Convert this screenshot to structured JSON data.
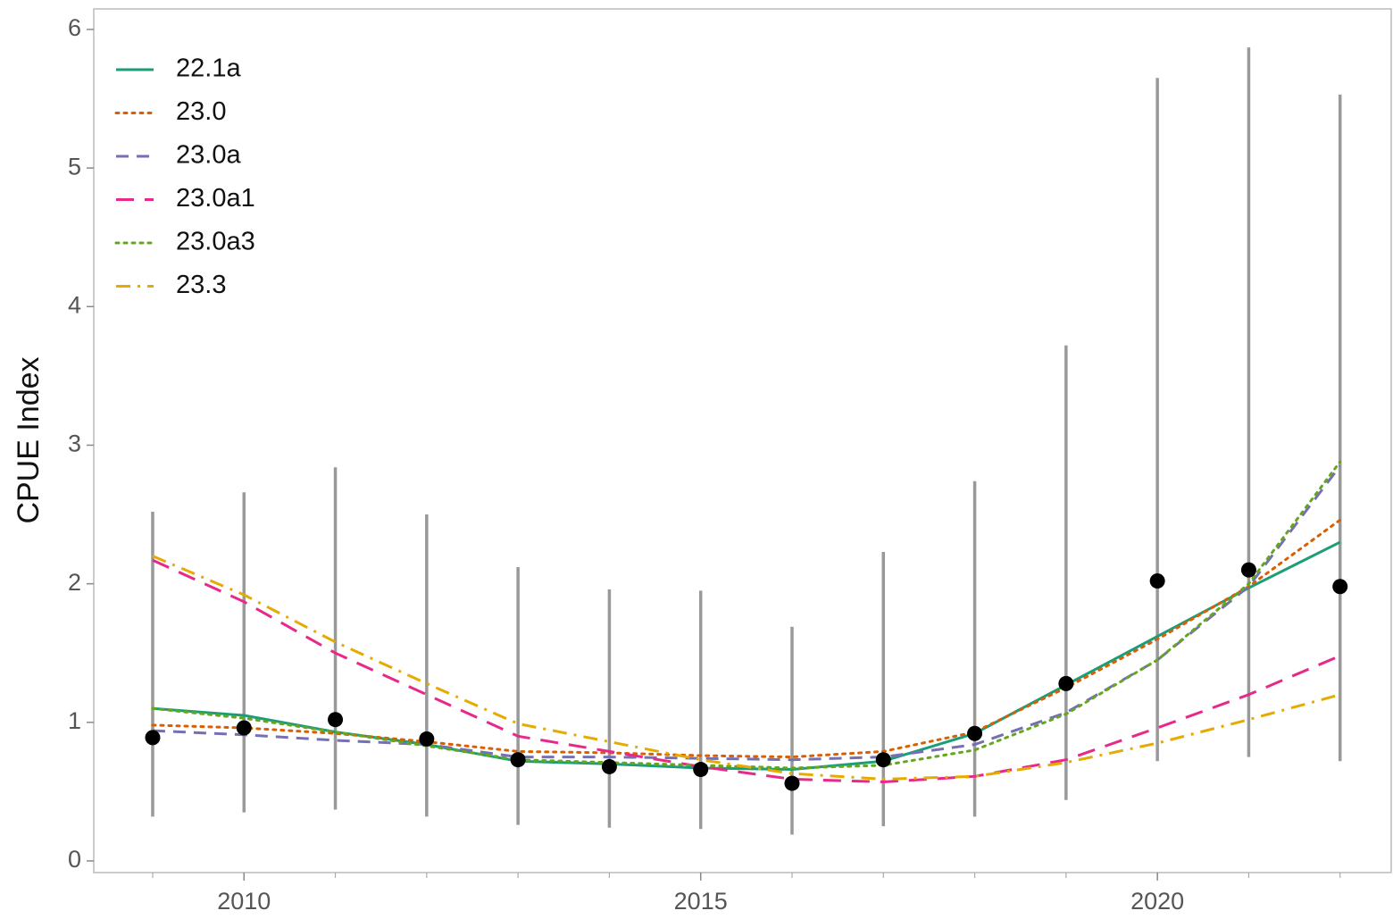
{
  "chart_data": {
    "type": "line",
    "y_label": "CPUE Index",
    "x": [
      2009,
      2010,
      2011,
      2012,
      2013,
      2014,
      2015,
      2016,
      2017,
      2018,
      2019,
      2020,
      2021,
      2022
    ],
    "observed": {
      "color": "#000000",
      "values": [
        0.89,
        0.96,
        1.02,
        0.88,
        0.73,
        0.68,
        0.66,
        0.56,
        0.73,
        0.92,
        1.28,
        2.02,
        2.1,
        1.98
      ],
      "lower": [
        0.32,
        0.35,
        0.37,
        0.32,
        0.26,
        0.24,
        0.23,
        0.19,
        0.25,
        0.32,
        0.44,
        0.72,
        0.75,
        0.72
      ],
      "upper": [
        2.52,
        2.66,
        2.84,
        2.5,
        2.12,
        1.96,
        1.95,
        1.69,
        2.23,
        2.74,
        3.72,
        5.65,
        5.87,
        5.53
      ],
      "error_color": "#999999"
    },
    "series": [
      {
        "name": "22.1a",
        "color": "#1b9e77",
        "dash": "solid",
        "values": [
          1.1,
          1.05,
          0.93,
          0.84,
          0.72,
          0.7,
          0.67,
          0.66,
          0.72,
          0.92,
          1.27,
          1.62,
          1.97,
          2.3
        ]
      },
      {
        "name": "23.0",
        "color": "#d95f02",
        "dash": "dotted",
        "values": [
          0.98,
          0.96,
          0.92,
          0.86,
          0.79,
          0.78,
          0.76,
          0.75,
          0.79,
          0.93,
          1.25,
          1.6,
          1.98,
          2.46
        ]
      },
      {
        "name": "23.0a",
        "color": "#7570b3",
        "dash": "dashed",
        "values": [
          0.94,
          0.91,
          0.87,
          0.84,
          0.75,
          0.75,
          0.74,
          0.73,
          0.75,
          0.84,
          1.07,
          1.45,
          1.98,
          2.85
        ]
      },
      {
        "name": "23.0a1",
        "color": "#e7298a",
        "dash": "longdash",
        "values": [
          2.17,
          1.87,
          1.5,
          1.2,
          0.9,
          0.79,
          0.68,
          0.59,
          0.57,
          0.61,
          0.73,
          0.96,
          1.2,
          1.48
        ]
      },
      {
        "name": "23.0a3",
        "color": "#66a61e",
        "dash": "dotted",
        "values": [
          1.1,
          1.03,
          0.93,
          0.83,
          0.73,
          0.71,
          0.69,
          0.67,
          0.69,
          0.8,
          1.06,
          1.45,
          2.0,
          2.88
        ]
      },
      {
        "name": "23.3",
        "color": "#e6ab02",
        "dash": "dotdash",
        "values": [
          2.2,
          1.92,
          1.58,
          1.28,
          0.99,
          0.86,
          0.73,
          0.63,
          0.59,
          0.61,
          0.71,
          0.85,
          1.02,
          1.2
        ]
      }
    ],
    "xlim": [
      2008.355,
      2022.56
    ],
    "ylim": [
      -0.084,
      6.148
    ],
    "xticks": [
      2010,
      2015,
      2020
    ],
    "yticks": [
      0,
      1,
      2,
      3,
      4,
      5,
      6
    ],
    "grid": false,
    "legend": "top-left"
  }
}
